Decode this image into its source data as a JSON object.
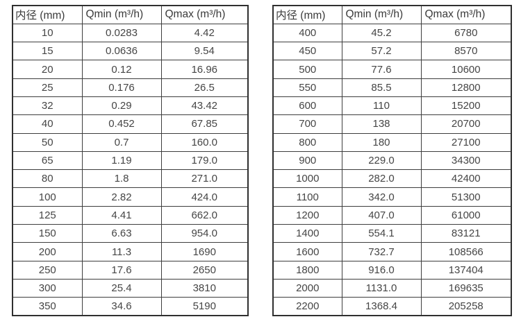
{
  "colors": {
    "background": "#ffffff",
    "outer_border": "#2f2f2f",
    "inner_border": "#3d3d3d",
    "text": "#454545"
  },
  "left_table": {
    "headers": [
      "内径 (mm)",
      "Qmin (m³/h)",
      "Qmax (m³/h)"
    ],
    "rows": [
      [
        "10",
        "0.0283",
        "4.42"
      ],
      [
        "15",
        "0.0636",
        "9.54"
      ],
      [
        "20",
        "0.12",
        "16.96"
      ],
      [
        "25",
        "0.176",
        "26.5"
      ],
      [
        "32",
        "0.29",
        "43.42"
      ],
      [
        "40",
        "0.452",
        "67.85"
      ],
      [
        "50",
        "0.7",
        "160.0"
      ],
      [
        "65",
        "1.19",
        "179.0"
      ],
      [
        "80",
        "1.8",
        "271.0"
      ],
      [
        "100",
        "2.82",
        "424.0"
      ],
      [
        "125",
        "4.41",
        "662.0"
      ],
      [
        "150",
        "6.63",
        "954.0"
      ],
      [
        "200",
        "11.3",
        "1690"
      ],
      [
        "250",
        "17.6",
        "2650"
      ],
      [
        "300",
        "25.4",
        "3810"
      ],
      [
        "350",
        "34.6",
        "5190"
      ]
    ]
  },
  "right_table": {
    "headers": [
      "内径 (mm)",
      "Qmin (m³/h)",
      "Qmax (m³/h)"
    ],
    "rows": [
      [
        "400",
        "45.2",
        "6780"
      ],
      [
        "450",
        "57.2",
        "8570"
      ],
      [
        "500",
        "77.6",
        "10600"
      ],
      [
        "550",
        "85.5",
        "12800"
      ],
      [
        "600",
        "110",
        "15200"
      ],
      [
        "700",
        "138",
        "20700"
      ],
      [
        "800",
        "180",
        "27100"
      ],
      [
        "900",
        "229.0",
        "34300"
      ],
      [
        "1000",
        "282.0",
        "42400"
      ],
      [
        "1100",
        "342.0",
        "51300"
      ],
      [
        "1200",
        "407.0",
        "61000"
      ],
      [
        "1400",
        "554.1",
        "83121"
      ],
      [
        "1600",
        "732.7",
        "108566"
      ],
      [
        "1800",
        "916.0",
        "137404"
      ],
      [
        "2000",
        "1131.0",
        "169635"
      ],
      [
        "2200",
        "1368.4",
        "205258"
      ]
    ]
  }
}
